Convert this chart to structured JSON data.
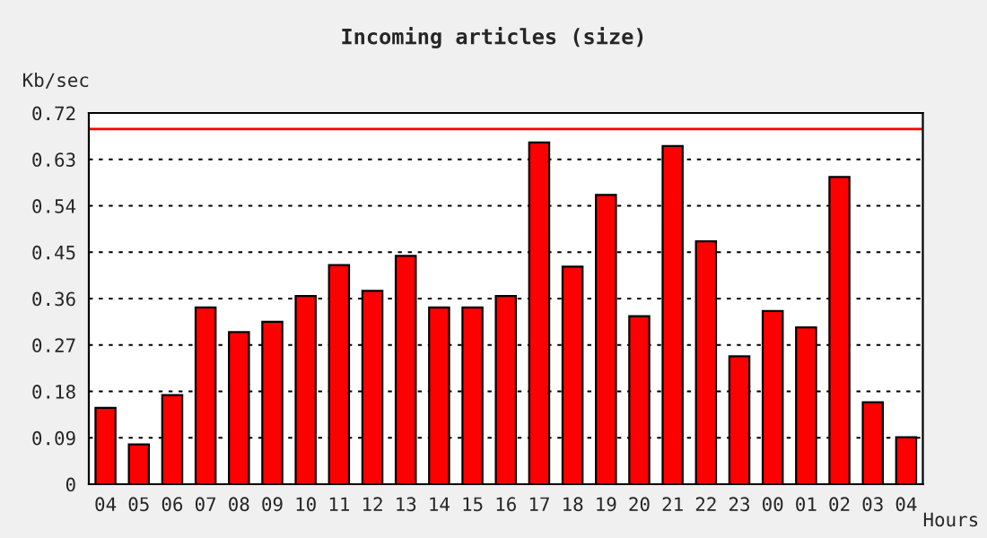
{
  "chart_data": {
    "type": "bar",
    "title": "Incoming articles (size)",
    "ylabel": "Kb/sec",
    "xlabel": "Hours",
    "categories": [
      "04",
      "05",
      "06",
      "07",
      "08",
      "09",
      "10",
      "11",
      "12",
      "13",
      "14",
      "15",
      "16",
      "17",
      "18",
      "19",
      "20",
      "21",
      "22",
      "23",
      "00",
      "01",
      "02",
      "03",
      "04"
    ],
    "series": [
      {
        "color": "#ff0000",
        "values": [
          0.148,
          0.077,
          0.173,
          0.343,
          0.295,
          0.315,
          0.365,
          0.425,
          0.375,
          0.443,
          0.343,
          0.343,
          0.365,
          0.663,
          0.422,
          0.561,
          0.326,
          0.656,
          0.471,
          0.248,
          0.336,
          0.304,
          0.596,
          0.159,
          0.091
        ]
      }
    ],
    "ylim": [
      0,
      0.72
    ],
    "yticks": [
      0,
      0.09,
      0.18,
      0.27,
      0.36,
      0.45,
      0.54,
      0.63,
      0.72
    ],
    "ref_lines": [
      {
        "axis": "y",
        "value": 0.689,
        "color": "#ff0000",
        "line_style": "solid"
      }
    ],
    "grid": "y"
  }
}
